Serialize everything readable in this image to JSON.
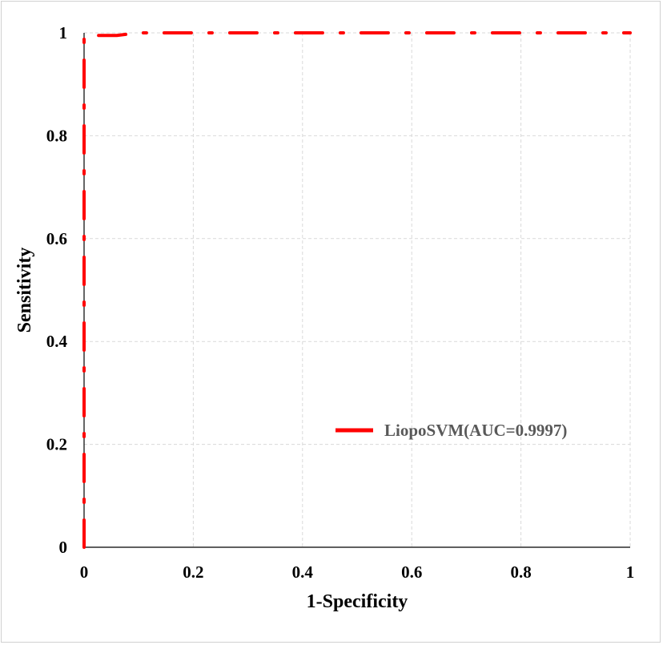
{
  "chart_data": {
    "type": "line",
    "title": "",
    "xlabel": "1-Specificity",
    "ylabel": "Sensitivity",
    "xlim": [
      0,
      1
    ],
    "ylim": [
      0,
      1
    ],
    "x_ticks": [
      "0",
      "0.2",
      "0.4",
      "0.6",
      "0.8",
      "1"
    ],
    "y_ticks": [
      "0",
      "0.2",
      "0.4",
      "0.6",
      "0.8",
      "1"
    ],
    "grid": true,
    "legend_position": "right",
    "series": [
      {
        "name": "LiopoSVM(AUC=0.9997)",
        "color": "#ff0000",
        "line_style": "dash-dot",
        "x": [
          0,
          0,
          0.003,
          0.06,
          0.1,
          1
        ],
        "y": [
          0,
          0.993,
          0.995,
          0.995,
          1,
          1
        ]
      }
    ]
  }
}
